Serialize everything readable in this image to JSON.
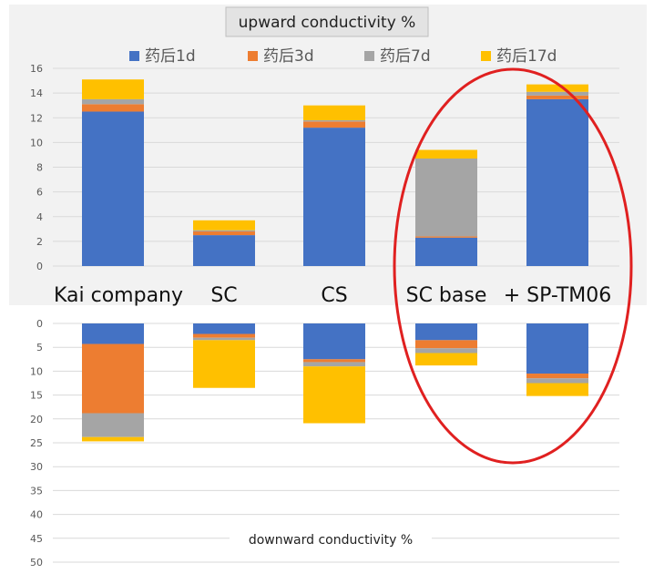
{
  "chart_data": [
    {
      "type": "bar",
      "stacked": true,
      "title": "upward conductivity %",
      "categories": [
        "Kai company",
        "SC",
        "CS",
        "SC base",
        "+ SP-TM06"
      ],
      "ylim": [
        0,
        16
      ],
      "yticks": [
        0,
        2,
        4,
        6,
        8,
        10,
        12,
        14,
        16
      ],
      "grid": true,
      "legend_position": "top",
      "series": [
        {
          "name": "药后1d",
          "color": "#4472C4",
          "values": [
            12.5,
            2.5,
            11.2,
            2.3,
            13.5
          ]
        },
        {
          "name": "药后3d",
          "color": "#ED7D31",
          "values": [
            0.6,
            0.3,
            0.5,
            0.1,
            0.3
          ]
        },
        {
          "name": "药后7d",
          "color": "#A5A5A5",
          "values": [
            0.4,
            0.1,
            0.1,
            6.3,
            0.3
          ]
        },
        {
          "name": "药后17d",
          "color": "#FFC000",
          "values": [
            1.6,
            0.8,
            1.2,
            0.7,
            0.6
          ]
        }
      ],
      "annotation": "red ellipse highlighting SC base and + SP-TM06"
    },
    {
      "type": "bar",
      "stacked": true,
      "inverted_axis": true,
      "title": "downward conductivity %",
      "categories": [
        "Kai company",
        "SC",
        "CS",
        "SC base",
        "+ SP-TM06"
      ],
      "ylim": [
        0,
        50
      ],
      "yticks": [
        0,
        5,
        10,
        15,
        20,
        25,
        30,
        35,
        40,
        45,
        50
      ],
      "grid": true,
      "series": [
        {
          "name": "药后1d",
          "color": "#4472C4",
          "values": [
            4.3,
            2.2,
            7.5,
            3.5,
            10.5
          ]
        },
        {
          "name": "药后3d",
          "color": "#ED7D31",
          "values": [
            14.5,
            0.8,
            0.6,
            1.7,
            1.0
          ]
        },
        {
          "name": "药后7d",
          "color": "#A5A5A5",
          "values": [
            5.0,
            0.5,
            0.9,
            1.0,
            1.0
          ]
        },
        {
          "name": "药后17d",
          "color": "#FFC000",
          "values": [
            0.9,
            10.0,
            11.9,
            2.6,
            2.7
          ]
        }
      ]
    }
  ],
  "colors": {
    "highlight_ellipse": "#E02020",
    "grid": "#D9D9D9",
    "axis_text": "#595959"
  }
}
